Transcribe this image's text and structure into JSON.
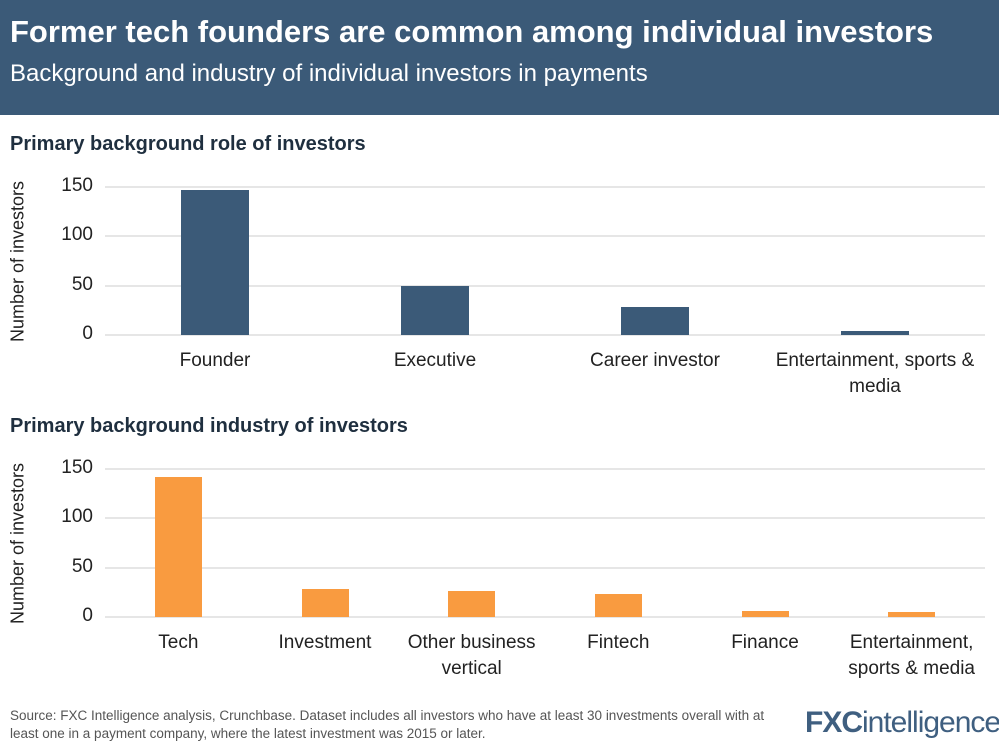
{
  "header": {
    "title": "Former tech founders are common among individual investors",
    "subtitle": "Background and industry of individual investors in payments"
  },
  "chart_data": [
    {
      "type": "bar",
      "title": "Primary background role of investors",
      "ylabel": "Number of investors",
      "categories": [
        "Founder",
        "Executive",
        "Career investor",
        "Entertainment, sports & media"
      ],
      "values": [
        147,
        50,
        28,
        4
      ],
      "ylim": [
        0,
        150
      ],
      "yticks": [
        0,
        50,
        100,
        150
      ],
      "grid": true,
      "color": "#3b5a78"
    },
    {
      "type": "bar",
      "title": "Primary background industry of investors",
      "ylabel": "Number of investors",
      "categories": [
        "Tech",
        "Investment",
        "Other business vertical",
        "Fintech",
        "Finance",
        "Entertainment, sports & media"
      ],
      "values": [
        142,
        28,
        26,
        23,
        6,
        5
      ],
      "ylim": [
        0,
        150
      ],
      "yticks": [
        0,
        50,
        100,
        150
      ],
      "grid": true,
      "color": "#f99b40"
    }
  ],
  "footer": {
    "source": "Source: FXC Intelligence analysis, Crunchbase. Dataset includes all investors who have at least 30 investments overall with at least one in a payment company, where the latest investment was 2015 or later.",
    "logo": "FXCintelligence"
  }
}
